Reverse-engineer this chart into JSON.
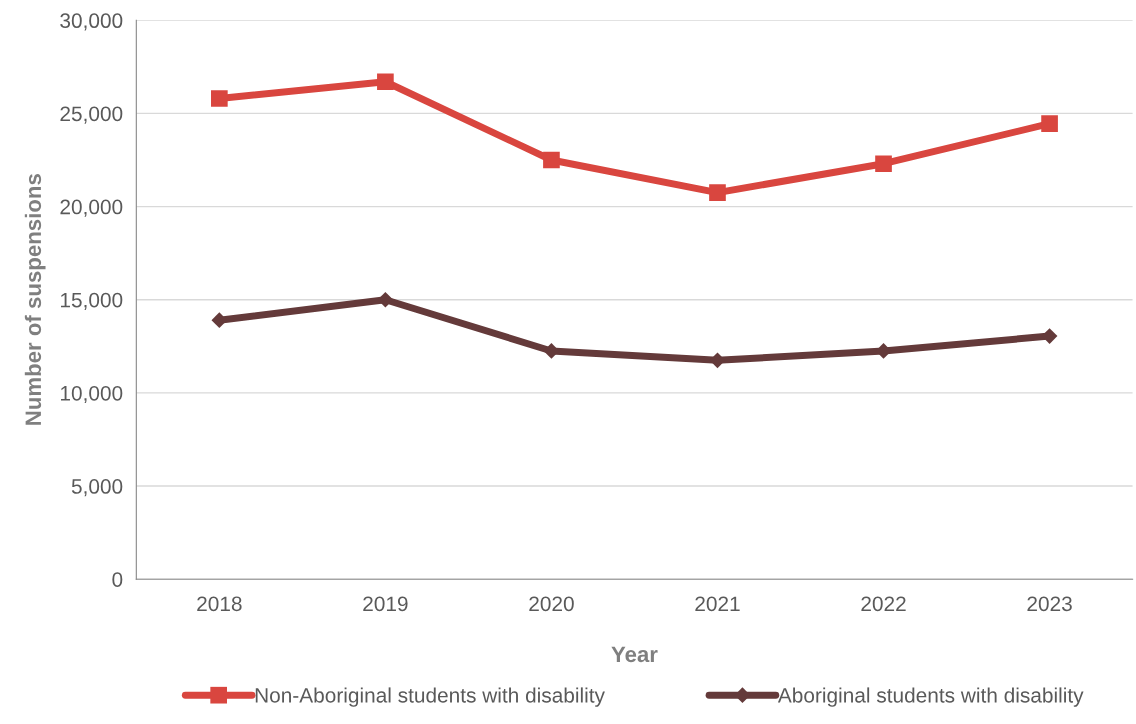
{
  "chart_data": {
    "type": "line",
    "xlabel": "Year",
    "ylabel": "Number of suspensions",
    "categories": [
      "2018",
      "2019",
      "2020",
      "2021",
      "2022",
      "2023"
    ],
    "series": [
      {
        "name": "Non-Aboriginal students with disability",
        "color": "#d9463f",
        "marker": "square",
        "values": [
          25800,
          26700,
          22500,
          20750,
          22300,
          24450
        ]
      },
      {
        "name": "Aboriginal students with disability",
        "color": "#643a3a",
        "marker": "diamond",
        "values": [
          13900,
          15000,
          12250,
          11750,
          12250,
          13050
        ]
      }
    ],
    "ylim": [
      0,
      30000
    ],
    "yticks": [
      {
        "value": 0,
        "label": "0"
      },
      {
        "value": 5000,
        "label": "5,000"
      },
      {
        "value": 10000,
        "label": "10,000"
      },
      {
        "value": 15000,
        "label": "15,000"
      },
      {
        "value": 20000,
        "label": "20,000"
      },
      {
        "value": 25000,
        "label": "25,000"
      },
      {
        "value": 30000,
        "label": "30,000"
      }
    ],
    "grid": "y",
    "legend": "bottom",
    "line_style": "solid"
  }
}
